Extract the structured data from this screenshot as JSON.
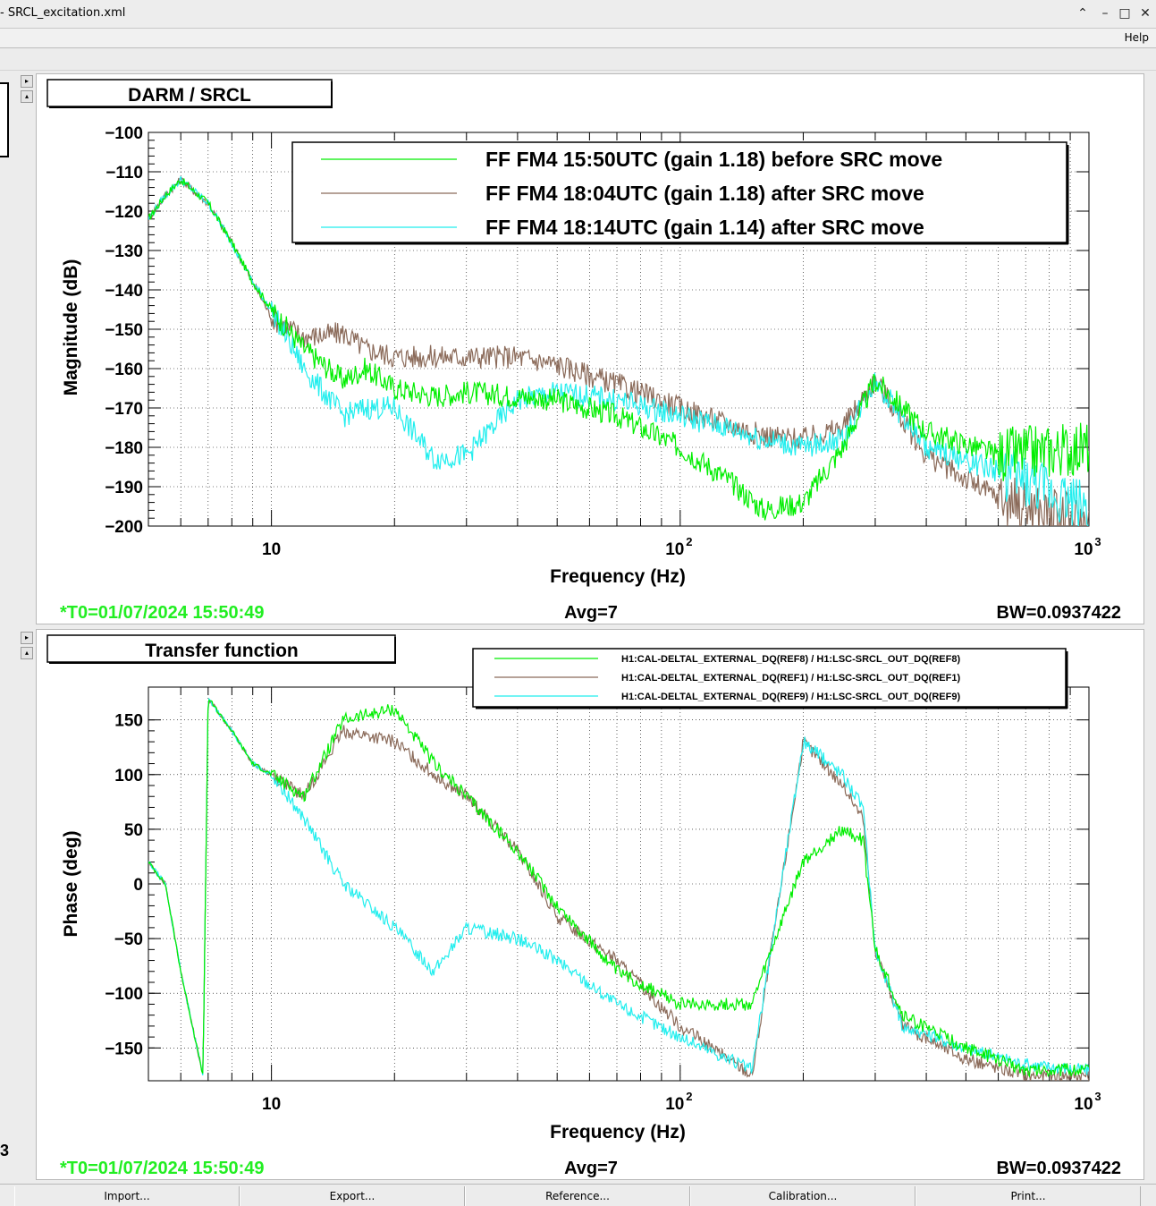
{
  "window": {
    "title": "- SRCL_excitation.xml",
    "buttons": {
      "chevron": "⌃",
      "minimize": "–",
      "maximize": "□",
      "close": "✕"
    }
  },
  "menu": {
    "help": "Help"
  },
  "left_strip": {
    "up_arrow": "▸",
    "down_arrow": "▴",
    "stray": "3"
  },
  "plots": [
    {
      "title": "DARM / SRCL",
      "ylabel": "Magnitude (dB)",
      "xlabel": "Frequency (Hz)",
      "xticks": {
        "ten": "10",
        "hundred_base": "10",
        "hundred_exp": "2",
        "thousand_base": "10",
        "thousand_exp": "3"
      },
      "yticks": [
        "−100",
        "−110",
        "−120",
        "−130",
        "−140",
        "−150",
        "−160",
        "−170",
        "−180",
        "−190",
        "−200"
      ],
      "legend": [
        "FF FM4 15:50UTC (gain 1.18) before SRC move",
        "FF FM4 18:04UTC  (gain 1.18) after SRC move",
        "FF FM4 18:14UTC  (gain 1.14) after SRC move"
      ],
      "footer": {
        "t0": "*T0=01/07/2024 15:50:49",
        "avg": "Avg=7",
        "bw": "BW=0.0937422"
      }
    },
    {
      "title": "Transfer function",
      "ylabel": "Phase (deg)",
      "xlabel": "Frequency (Hz)",
      "xticks": {
        "ten": "10",
        "hundred_base": "10",
        "hundred_exp": "2",
        "thousand_base": "10",
        "thousand_exp": "3"
      },
      "yticks": [
        "150",
        "100",
        "50",
        "0",
        "−50",
        "−100",
        "−150"
      ],
      "legend": [
        "H1:CAL-DELTAL_EXTERNAL_DQ(REF8) / H1:LSC-SRCL_OUT_DQ(REF8)",
        "H1:CAL-DELTAL_EXTERNAL_DQ(REF1) / H1:LSC-SRCL_OUT_DQ(REF1)",
        "H1:CAL-DELTAL_EXTERNAL_DQ(REF9) / H1:LSC-SRCL_OUT_DQ(REF9)"
      ],
      "footer": {
        "t0": "*T0=01/07/2024 15:50:49",
        "avg": "Avg=7",
        "bw": "BW=0.0937422"
      }
    }
  ],
  "colors": {
    "green": "#00ee00",
    "brown": "#8b6b5a",
    "cyan": "#22eeee",
    "footer_green": "#22ee22"
  },
  "bottom_buttons": [
    "Import...",
    "Export...",
    "Reference...",
    "Calibration...",
    "Print..."
  ],
  "chart_data": [
    {
      "type": "line",
      "title": "DARM / SRCL",
      "xlabel": "Frequency (Hz)",
      "ylabel": "Magnitude (dB)",
      "xscale": "log",
      "xlim": [
        5,
        1000
      ],
      "ylim": [
        -200,
        -100
      ],
      "grid": true,
      "legend_position": "top-right",
      "series": [
        {
          "name": "FF FM4 15:50UTC (gain 1.18) before SRC move",
          "color": "#00ee00",
          "x": [
            5,
            5.5,
            6,
            7,
            8,
            9,
            10,
            12,
            15,
            17,
            20,
            25,
            30,
            40,
            50,
            70,
            100,
            130,
            160,
            200,
            250,
            300,
            400,
            600,
            1000
          ],
          "y": [
            -122,
            -116,
            -112,
            -118,
            -128,
            -138,
            -145,
            -155,
            -163,
            -160,
            -165,
            -167,
            -166,
            -167,
            -168,
            -172,
            -180,
            -188,
            -196,
            -194,
            -180,
            -163,
            -176,
            -182,
            -180
          ]
        },
        {
          "name": "FF FM4 18:04UTC  (gain 1.18) after SRC move",
          "color": "#8b6b5a",
          "x": [
            5,
            5.5,
            6,
            7,
            8,
            9,
            10,
            12,
            15,
            17,
            20,
            25,
            30,
            40,
            50,
            70,
            100,
            130,
            160,
            200,
            250,
            300,
            400,
            600,
            1000
          ],
          "y": [
            -122,
            -116,
            -112,
            -118,
            -128,
            -138,
            -147,
            -152,
            -151,
            -155,
            -157,
            -157,
            -157,
            -157,
            -159,
            -164,
            -170,
            -174,
            -177,
            -178,
            -175,
            -163,
            -182,
            -193,
            -200
          ]
        },
        {
          "name": "FF FM4 18:14UTC  (gain 1.14) after SRC move",
          "color": "#22eeee",
          "x": [
            5,
            5.5,
            6,
            7,
            8,
            9,
            10,
            12,
            15,
            17,
            20,
            25,
            30,
            40,
            50,
            70,
            100,
            130,
            160,
            200,
            250,
            300,
            400,
            600,
            1000
          ],
          "y": [
            -122,
            -116,
            -112,
            -118,
            -128,
            -138,
            -145,
            -160,
            -172,
            -170,
            -170,
            -183,
            -182,
            -168,
            -166,
            -168,
            -172,
            -175,
            -178,
            -180,
            -178,
            -163,
            -180,
            -186,
            -195
          ]
        }
      ]
    },
    {
      "type": "line",
      "title": "Transfer function",
      "xlabel": "Frequency (Hz)",
      "ylabel": "Phase (deg)",
      "xscale": "log",
      "xlim": [
        5,
        1000
      ],
      "ylim": [
        -180,
        180
      ],
      "grid": true,
      "legend_position": "top-right",
      "series": [
        {
          "name": "H1:CAL-DELTAL_EXTERNAL_DQ(REF8) / H1:LSC-SRCL_OUT_DQ(REF8)",
          "color": "#00ee00",
          "x": [
            5,
            5.5,
            6,
            6.8,
            7,
            8,
            9,
            10,
            12,
            15,
            20,
            25,
            30,
            40,
            50,
            70,
            100,
            150,
            200,
            250,
            280,
            300,
            350,
            500,
            700,
            1000
          ],
          "y": [
            20,
            0,
            -80,
            -175,
            170,
            140,
            110,
            100,
            80,
            150,
            160,
            110,
            80,
            30,
            -20,
            -80,
            -110,
            -110,
            20,
            50,
            40,
            -60,
            -120,
            -150,
            -170,
            -170
          ]
        },
        {
          "name": "H1:CAL-DELTAL_EXTERNAL_DQ(REF1) / H1:LSC-SRCL_OUT_DQ(REF1)",
          "color": "#8b6b5a",
          "x": [
            5,
            5.5,
            6,
            6.8,
            7,
            8,
            9,
            10,
            12,
            15,
            20,
            25,
            30,
            40,
            50,
            70,
            100,
            150,
            200,
            250,
            280,
            300,
            350,
            500,
            700,
            1000
          ],
          "y": [
            20,
            0,
            -80,
            -175,
            170,
            140,
            110,
            100,
            80,
            140,
            130,
            100,
            80,
            30,
            -30,
            -70,
            -130,
            -175,
            130,
            90,
            60,
            -60,
            -130,
            -160,
            -175,
            -175
          ]
        },
        {
          "name": "H1:CAL-DELTAL_EXTERNAL_DQ(REF9) / H1:LSC-SRCL_OUT_DQ(REF9)",
          "color": "#22eeee",
          "x": [
            5,
            5.5,
            6,
            6.8,
            7,
            8,
            9,
            10,
            12,
            15,
            20,
            25,
            30,
            40,
            50,
            70,
            100,
            150,
            200,
            250,
            280,
            300,
            350,
            500,
            700,
            1000
          ],
          "y": [
            20,
            0,
            -80,
            -175,
            170,
            140,
            110,
            100,
            60,
            0,
            -40,
            -80,
            -40,
            -50,
            -70,
            -110,
            -140,
            -170,
            130,
            100,
            70,
            -60,
            -130,
            -150,
            -165,
            -170
          ]
        }
      ]
    }
  ]
}
